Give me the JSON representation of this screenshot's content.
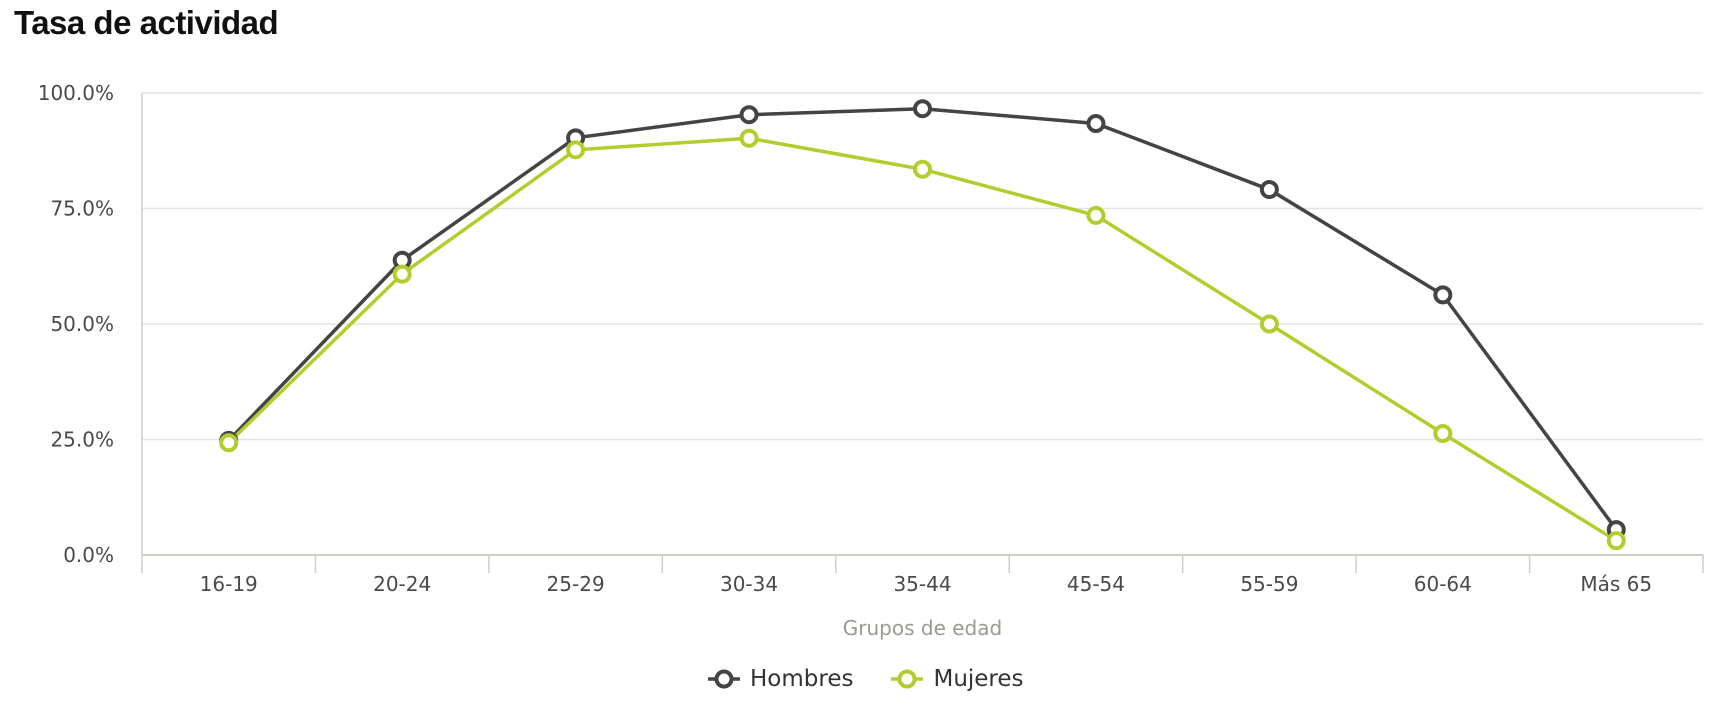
{
  "title": "Tasa de actividad",
  "chart_data": {
    "type": "line",
    "title": "Tasa de actividad",
    "xlabel": "Grupos de edad",
    "ylabel": "",
    "categories": [
      "16-19",
      "20-24",
      "25-29",
      "30-34",
      "35-44",
      "45-54",
      "55-59",
      "60-64",
      "Más 65"
    ],
    "ylim": [
      0,
      100
    ],
    "yticks": [
      "0.0%",
      "25.0%",
      "50.0%",
      "75.0%",
      "100.0%"
    ],
    "grid": true,
    "legend_position": "bottom-center",
    "series": [
      {
        "name": "Hombres",
        "color": "#444444",
        "values": [
          24.8,
          63.8,
          90.3,
          95.3,
          96.6,
          93.4,
          79.1,
          56.3,
          5.5
        ]
      },
      {
        "name": "Mujeres",
        "color": "#b5cc2e",
        "values": [
          24.3,
          60.8,
          87.7,
          90.2,
          83.5,
          73.5,
          50.0,
          26.3,
          3.1
        ]
      }
    ]
  }
}
